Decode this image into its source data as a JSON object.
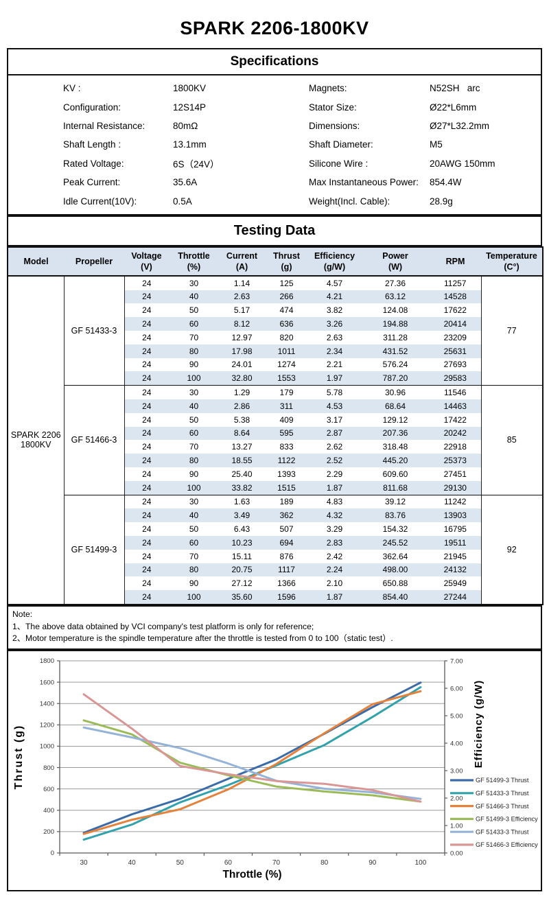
{
  "page_title": "SPARK 2206-1800KV",
  "colors": {
    "table_header_bg": "#D9E2EF",
    "row_stripe_bg": "#DCE6F1",
    "border": "#111111"
  },
  "specifications": {
    "title": "Specifications",
    "left": [
      {
        "label": "KV :",
        "value": "1800KV"
      },
      {
        "label": "Configuration:",
        "value": "12S14P"
      },
      {
        "label": "Internal Resistance:",
        "value": "80mΩ"
      },
      {
        "label": "Shaft Length :",
        "value": "13.1mm"
      },
      {
        "label": "Rated Voltage:",
        "value": "6S（24V）"
      },
      {
        "label": "Peak Current:",
        "value": "35.6A"
      },
      {
        "label": "Idle Current(10V):",
        "value": "0.5A"
      }
    ],
    "right": [
      {
        "label": "Magnets:",
        "value": "N52SH   arc"
      },
      {
        "label": "Stator Size:",
        "value": "Ø22*L6mm"
      },
      {
        "label": "Dimensions:",
        "value": "Ø27*L32.2mm"
      },
      {
        "label": "Shaft Diameter:",
        "value": "M5"
      },
      {
        "label": "Silicone Wire :",
        "value": "20AWG 150mm"
      },
      {
        "label": "Max Instantaneous Power:",
        "value": "854.4W"
      },
      {
        "label": "Weight(Incl. Cable):",
        "value": "28.9g"
      }
    ]
  },
  "testing": {
    "title": "Testing Data",
    "header": {
      "model": "Model",
      "propeller": "Propeller",
      "cols": [
        {
          "line1": "Voltage",
          "line2": "(V)"
        },
        {
          "line1": "Throttle",
          "line2": "(%)"
        },
        {
          "line1": "Current",
          "line2": "(A)"
        },
        {
          "line1": "Thrust",
          "line2": "(g)"
        },
        {
          "line1": "Efficiency",
          "line2": "(g/W)"
        },
        {
          "line1": "Power",
          "line2": "(W)"
        },
        {
          "line1": "RPM",
          "line2": ""
        },
        {
          "line1": "Temperature",
          "line2": "(C°)"
        }
      ]
    },
    "model": "SPARK 2206\n1800KV",
    "groups": [
      {
        "propeller": "GF 51433-3",
        "temperature": "77",
        "rows": [
          [
            "24",
            "30",
            "1.14",
            "125",
            "4.57",
            "27.36",
            "11257"
          ],
          [
            "24",
            "40",
            "2.63",
            "266",
            "4.21",
            "63.12",
            "14528"
          ],
          [
            "24",
            "50",
            "5.17",
            "474",
            "3.82",
            "124.08",
            "17622"
          ],
          [
            "24",
            "60",
            "8.12",
            "636",
            "3.26",
            "194.88",
            "20414"
          ],
          [
            "24",
            "70",
            "12.97",
            "820",
            "2.63",
            "311.28",
            "23209"
          ],
          [
            "24",
            "80",
            "17.98",
            "1011",
            "2.34",
            "431.52",
            "25631"
          ],
          [
            "24",
            "90",
            "24.01",
            "1274",
            "2.21",
            "576.24",
            "27693"
          ],
          [
            "24",
            "100",
            "32.80",
            "1553",
            "1.97",
            "787.20",
            "29583"
          ]
        ]
      },
      {
        "propeller": "GF 51466-3",
        "temperature": "85",
        "rows": [
          [
            "24",
            "30",
            "1.29",
            "179",
            "5.78",
            "30.96",
            "11546"
          ],
          [
            "24",
            "40",
            "2.86",
            "311",
            "4.53",
            "68.64",
            "14463"
          ],
          [
            "24",
            "50",
            "5.38",
            "409",
            "3.17",
            "129.12",
            "17422"
          ],
          [
            "24",
            "60",
            "8.64",
            "595",
            "2.87",
            "207.36",
            "20242"
          ],
          [
            "24",
            "70",
            "13.27",
            "833",
            "2.62",
            "318.48",
            "22918"
          ],
          [
            "24",
            "80",
            "18.55",
            "1122",
            "2.52",
            "445.20",
            "25373"
          ],
          [
            "24",
            "90",
            "25.40",
            "1393",
            "2.29",
            "609.60",
            "27451"
          ],
          [
            "24",
            "100",
            "33.82",
            "1515",
            "1.87",
            "811.68",
            "29130"
          ]
        ]
      },
      {
        "propeller": "GF 51499-3",
        "temperature": "92",
        "rows": [
          [
            "24",
            "30",
            "1.63",
            "189",
            "4.83",
            "39.12",
            "11242"
          ],
          [
            "24",
            "40",
            "3.49",
            "362",
            "4.32",
            "83.76",
            "13903"
          ],
          [
            "24",
            "50",
            "6.43",
            "507",
            "3.29",
            "154.32",
            "16795"
          ],
          [
            "24",
            "60",
            "10.23",
            "694",
            "2.83",
            "245.52",
            "19511"
          ],
          [
            "24",
            "70",
            "15.11",
            "876",
            "2.42",
            "362.64",
            "21945"
          ],
          [
            "24",
            "80",
            "20.75",
            "1117",
            "2.24",
            "498.00",
            "24132"
          ],
          [
            "24",
            "90",
            "27.12",
            "1366",
            "2.10",
            "650.88",
            "25949"
          ],
          [
            "24",
            "100",
            "35.60",
            "1596",
            "1.87",
            "854.40",
            "27244"
          ]
        ]
      }
    ]
  },
  "notes": {
    "heading": "Note:",
    "items": [
      "1、The above data obtained by VCI company's test platform is only for reference;",
      "2、Motor temperature is the spindle temperature after the throttle is tested from 0 to 100（static test）."
    ]
  },
  "chart_data": {
    "type": "line",
    "x": [
      30,
      40,
      50,
      60,
      70,
      80,
      90,
      100
    ],
    "xlabel": "Throttle  (%)",
    "ylabel_left": "Thrust  (g)",
    "ylabel_right": "Efficiency (g/W)",
    "ylim_left": [
      0,
      1800
    ],
    "ytick_step_left": 200,
    "ylim_right": [
      0,
      7
    ],
    "ytick_step_right": 1,
    "grid": true,
    "legend_position": "right",
    "series": [
      {
        "name": "GF 51499-3 Thrust",
        "axis": "left",
        "color": "#3B6CA8",
        "values": [
          189,
          362,
          507,
          694,
          876,
          1117,
          1366,
          1596
        ]
      },
      {
        "name": "GF 51433-3 Thrust",
        "axis": "left",
        "color": "#31A2AC",
        "values": [
          125,
          266,
          474,
          636,
          820,
          1011,
          1274,
          1553
        ]
      },
      {
        "name": "GF 51466-3 Thrust",
        "axis": "left",
        "color": "#E4813A",
        "values": [
          179,
          311,
          409,
          595,
          833,
          1122,
          1393,
          1515
        ]
      },
      {
        "name": "GF 51499-3 Efficiency",
        "axis": "right",
        "color": "#9BBB59",
        "values": [
          4.83,
          4.32,
          3.29,
          2.83,
          2.42,
          2.24,
          2.1,
          1.87
        ]
      },
      {
        "name": "GF 51433-3 Thrust",
        "axis": "right",
        "color": "#95B3D7",
        "values": [
          4.57,
          4.21,
          3.82,
          3.26,
          2.63,
          2.34,
          2.21,
          1.97
        ]
      },
      {
        "name": "GF 51466-3 Efficiency",
        "axis": "right",
        "color": "#D99694",
        "values": [
          5.78,
          4.53,
          3.17,
          2.87,
          2.62,
          2.52,
          2.29,
          1.87
        ]
      }
    ]
  }
}
